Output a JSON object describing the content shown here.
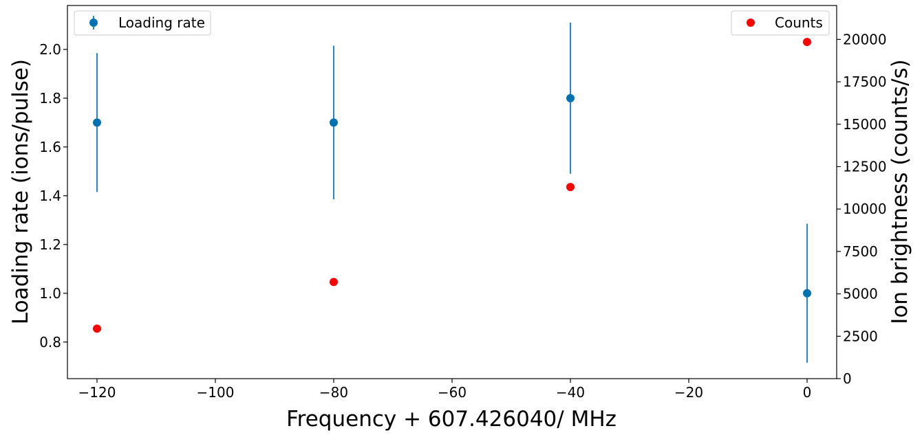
{
  "chart_data": {
    "type": "scatter",
    "title": "",
    "xlabel": "Frequency + 607.426040/ MHz",
    "ylabel": "Loading rate (ions/pulse)",
    "y2label": "Ion brightness (counts/s)",
    "xlim": [
      -125,
      5
    ],
    "ylim": [
      0.65,
      2.18
    ],
    "y2lim": [
      0,
      22000
    ],
    "grid": false,
    "x_ticks": [
      -120,
      -100,
      -80,
      -60,
      -40,
      -20,
      0
    ],
    "x_tick_labels": [
      "−120",
      "−100",
      "−80",
      "−60",
      "−40",
      "−20",
      "0"
    ],
    "y_ticks": [
      0.8,
      1.0,
      1.2,
      1.4,
      1.6,
      1.8,
      2.0
    ],
    "y_tick_labels": [
      "0.8",
      "1.0",
      "1.2",
      "1.4",
      "1.6",
      "1.8",
      "2.0"
    ],
    "y2_ticks": [
      0,
      2500,
      5000,
      7500,
      10000,
      12500,
      15000,
      17500,
      20000
    ],
    "y2_tick_labels": [
      "0",
      "2500",
      "5000",
      "7500",
      "10000",
      "12500",
      "15000",
      "17500",
      "20000"
    ],
    "series": [
      {
        "name": "Loading rate",
        "axis": "left",
        "color": "#0072b2",
        "errorbar_color": "#1f8ac9",
        "x": [
          -120,
          -80,
          -40,
          0
        ],
        "y": [
          1.7,
          1.7,
          1.8,
          1.0
        ],
        "yerr_low": [
          1.415,
          1.385,
          1.49,
          0.715
        ],
        "yerr_high": [
          1.985,
          2.015,
          2.11,
          1.285
        ],
        "legend_position": "upper left"
      },
      {
        "name": "Counts",
        "axis": "right",
        "color": "#ff0000",
        "x": [
          -120,
          -80,
          -40,
          0
        ],
        "y": [
          2950,
          5700,
          11300,
          19850
        ],
        "legend_position": "upper right"
      }
    ]
  }
}
